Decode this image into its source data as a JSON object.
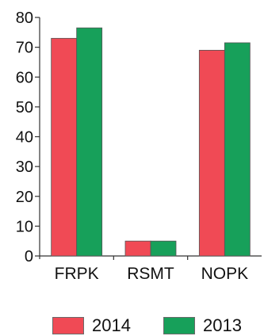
{
  "chart_data": {
    "type": "bar",
    "categories": [
      "FRPK",
      "RSMT",
      "NOPK"
    ],
    "series": [
      {
        "name": "2014",
        "color": "#f04a55",
        "values": [
          73,
          5,
          69
        ]
      },
      {
        "name": "2013",
        "color": "#17a05a",
        "values": [
          76.5,
          5,
          71.5
        ]
      }
    ],
    "ylim": [
      0,
      80
    ],
    "yticks": [
      "0",
      "10",
      "20",
      "30",
      "40",
      "50",
      "60",
      "70",
      "80"
    ],
    "title": "",
    "xlabel": "",
    "ylabel": "",
    "grid": false,
    "legend_position": "bottom"
  }
}
